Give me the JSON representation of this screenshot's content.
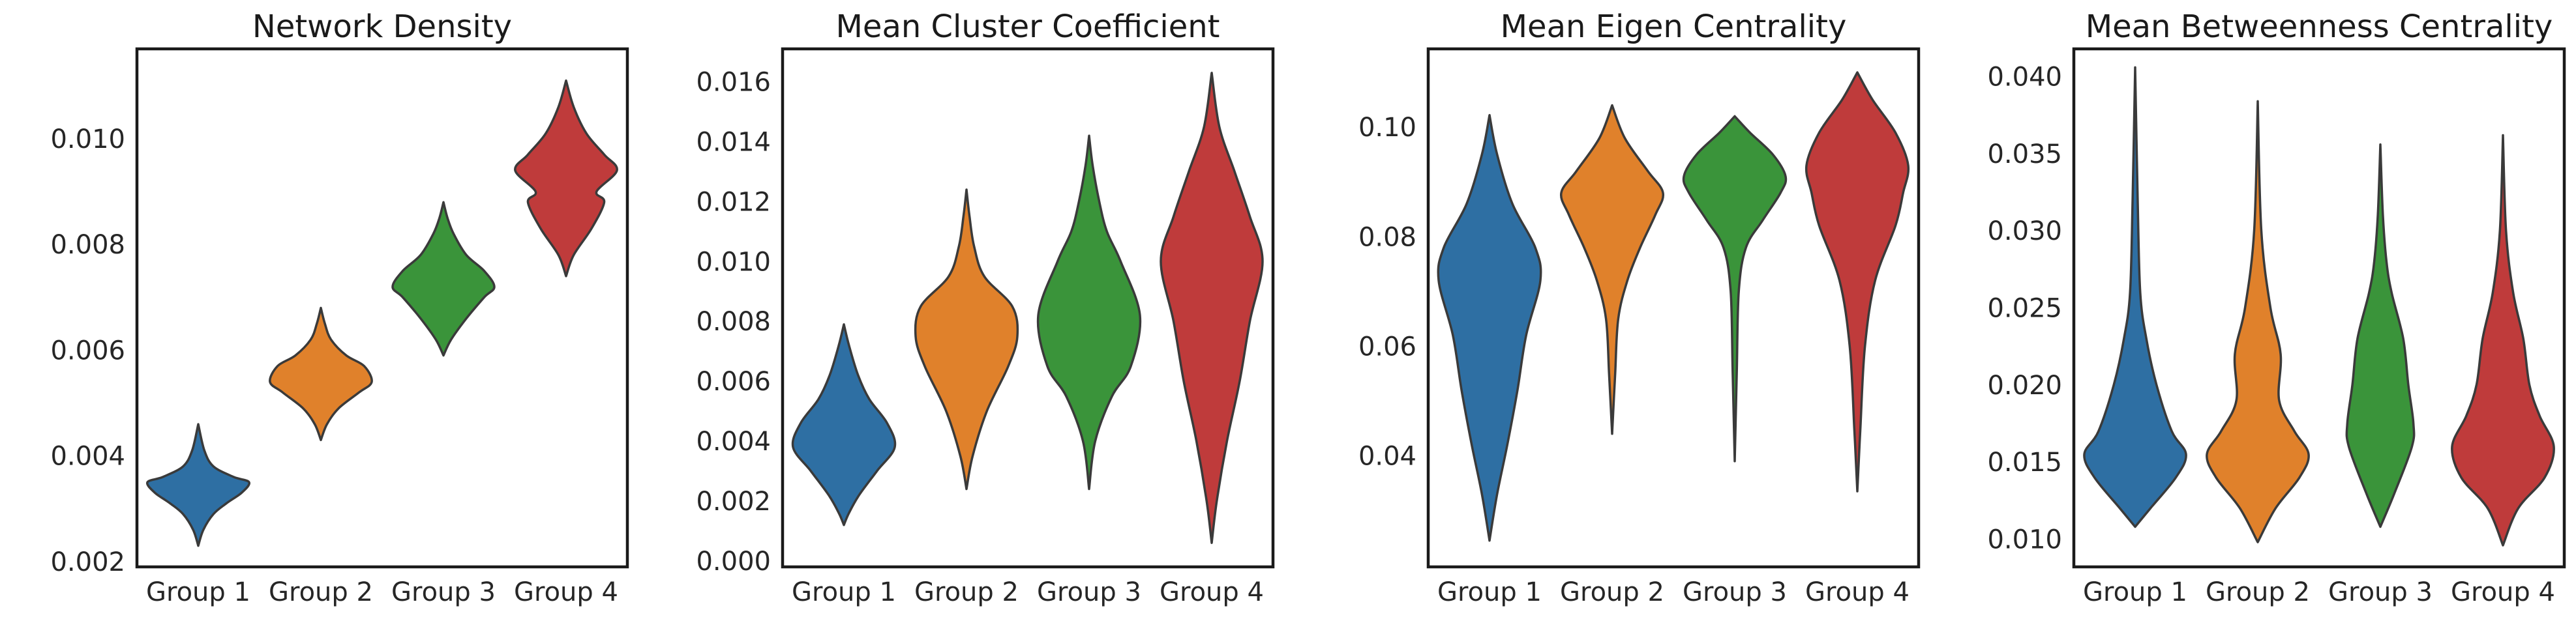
{
  "figure": {
    "category_labels": [
      "Group 1",
      "Group 2",
      "Group 3",
      "Group 4"
    ],
    "colors": [
      "#2e6fa3",
      "#e0812b",
      "#3a943a",
      "#bf3b3b"
    ]
  },
  "chart_data": [
    {
      "type": "violin",
      "title": "Network Density",
      "categories": [
        "Group 1",
        "Group 2",
        "Group 3",
        "Group 4"
      ],
      "ylim": [
        0.0019,
        0.0117
      ],
      "yticks": [
        0.002,
        0.004,
        0.006,
        0.008,
        0.01
      ],
      "ytick_labels": [
        "0.002",
        "0.004",
        "0.006",
        "0.008",
        "0.010"
      ],
      "series": [
        {
          "name": "Group 1",
          "profile": [
            [
              0.0023,
              0
            ],
            [
              0.0026,
              0.1
            ],
            [
              0.0029,
              0.3
            ],
            [
              0.0031,
              0.55
            ],
            [
              0.0033,
              0.85
            ],
            [
              0.0035,
              1.0
            ],
            [
              0.0036,
              0.7
            ],
            [
              0.0038,
              0.3
            ],
            [
              0.0041,
              0.12
            ],
            [
              0.0046,
              0
            ]
          ]
        },
        {
          "name": "Group 2",
          "profile": [
            [
              0.0043,
              0
            ],
            [
              0.0046,
              0.12
            ],
            [
              0.0049,
              0.35
            ],
            [
              0.0052,
              0.75
            ],
            [
              0.0054,
              1.0
            ],
            [
              0.0057,
              0.85
            ],
            [
              0.0059,
              0.5
            ],
            [
              0.0062,
              0.2
            ],
            [
              0.0065,
              0.08
            ],
            [
              0.0068,
              0
            ]
          ]
        },
        {
          "name": "Group 3",
          "profile": [
            [
              0.0059,
              0
            ],
            [
              0.0062,
              0.15
            ],
            [
              0.0066,
              0.45
            ],
            [
              0.007,
              0.8
            ],
            [
              0.0072,
              1.0
            ],
            [
              0.0075,
              0.8
            ],
            [
              0.0078,
              0.45
            ],
            [
              0.0082,
              0.2
            ],
            [
              0.0085,
              0.08
            ],
            [
              0.0088,
              0
            ]
          ]
        },
        {
          "name": "Group 4",
          "profile": [
            [
              0.0074,
              0
            ],
            [
              0.0078,
              0.15
            ],
            [
              0.0083,
              0.5
            ],
            [
              0.0088,
              0.75
            ],
            [
              0.009,
              0.6
            ],
            [
              0.0094,
              1.0
            ],
            [
              0.0097,
              0.75
            ],
            [
              0.0101,
              0.4
            ],
            [
              0.0106,
              0.15
            ],
            [
              0.0111,
              0
            ]
          ]
        }
      ]
    },
    {
      "type": "violin",
      "title": "Mean Cluster Coefficient",
      "categories": [
        "Group 1",
        "Group 2",
        "Group 3",
        "Group 4"
      ],
      "ylim": [
        -0.0002,
        0.0171
      ],
      "yticks": [
        0.0,
        0.002,
        0.004,
        0.006,
        0.008,
        0.01,
        0.012,
        0.014,
        0.016
      ],
      "ytick_labels": [
        "0.000",
        "0.002",
        "0.004",
        "0.006",
        "0.008",
        "0.010",
        "0.012",
        "0.014",
        "0.016"
      ],
      "series": [
        {
          "name": "Group 1",
          "profile": [
            [
              0.0012,
              0
            ],
            [
              0.0016,
              0.1
            ],
            [
              0.0022,
              0.3
            ],
            [
              0.003,
              0.65
            ],
            [
              0.0038,
              1.0
            ],
            [
              0.0046,
              0.85
            ],
            [
              0.0054,
              0.5
            ],
            [
              0.0062,
              0.28
            ],
            [
              0.0072,
              0.1
            ],
            [
              0.0079,
              0
            ]
          ]
        },
        {
          "name": "Group 2",
          "profile": [
            [
              0.0024,
              0
            ],
            [
              0.0035,
              0.12
            ],
            [
              0.005,
              0.4
            ],
            [
              0.0065,
              0.82
            ],
            [
              0.0075,
              1.0
            ],
            [
              0.0085,
              0.9
            ],
            [
              0.0095,
              0.35
            ],
            [
              0.0105,
              0.15
            ],
            [
              0.0115,
              0.06
            ],
            [
              0.0124,
              0
            ]
          ]
        },
        {
          "name": "Group 3",
          "profile": [
            [
              0.0024,
              0
            ],
            [
              0.004,
              0.12
            ],
            [
              0.0055,
              0.45
            ],
            [
              0.0065,
              0.82
            ],
            [
              0.0082,
              1.0
            ],
            [
              0.01,
              0.62
            ],
            [
              0.011,
              0.35
            ],
            [
              0.012,
              0.2
            ],
            [
              0.0132,
              0.07
            ],
            [
              0.0142,
              0
            ]
          ]
        },
        {
          "name": "Group 4",
          "profile": [
            [
              0.0006,
              0
            ],
            [
              0.002,
              0.1
            ],
            [
              0.004,
              0.3
            ],
            [
              0.006,
              0.55
            ],
            [
              0.008,
              0.75
            ],
            [
              0.01,
              1.0
            ],
            [
              0.0115,
              0.75
            ],
            [
              0.013,
              0.45
            ],
            [
              0.0145,
              0.15
            ],
            [
              0.0163,
              0
            ]
          ]
        }
      ]
    },
    {
      "type": "violin",
      "title": "Mean Eigen Centrality",
      "categories": [
        "Group 1",
        "Group 2",
        "Group 3",
        "Group 4"
      ],
      "ylim": [
        0.0197,
        0.1143
      ],
      "yticks": [
        0.04,
        0.06,
        0.08,
        0.1
      ],
      "ytick_labels": [
        "0.04",
        "0.06",
        "0.08",
        "0.10"
      ],
      "series": [
        {
          "name": "Group 1",
          "profile": [
            [
              0.0245,
              0
            ],
            [
              0.033,
              0.15
            ],
            [
              0.042,
              0.35
            ],
            [
              0.052,
              0.55
            ],
            [
              0.062,
              0.72
            ],
            [
              0.072,
              1.0
            ],
            [
              0.078,
              0.9
            ],
            [
              0.086,
              0.45
            ],
            [
              0.095,
              0.15
            ],
            [
              0.1022,
              0
            ]
          ]
        },
        {
          "name": "Group 2",
          "profile": [
            [
              0.044,
              0
            ],
            [
              0.055,
              0.06
            ],
            [
              0.065,
              0.12
            ],
            [
              0.072,
              0.3
            ],
            [
              0.078,
              0.55
            ],
            [
              0.084,
              0.85
            ],
            [
              0.088,
              1.0
            ],
            [
              0.092,
              0.7
            ],
            [
              0.098,
              0.25
            ],
            [
              0.104,
              0
            ]
          ]
        },
        {
          "name": "Group 3",
          "profile": [
            [
              0.039,
              0
            ],
            [
              0.055,
              0.04
            ],
            [
              0.07,
              0.08
            ],
            [
              0.078,
              0.22
            ],
            [
              0.083,
              0.55
            ],
            [
              0.088,
              0.9
            ],
            [
              0.091,
              1.0
            ],
            [
              0.095,
              0.75
            ],
            [
              0.099,
              0.3
            ],
            [
              0.102,
              0
            ]
          ]
        },
        {
          "name": "Group 4",
          "profile": [
            [
              0.0335,
              0
            ],
            [
              0.045,
              0.06
            ],
            [
              0.06,
              0.15
            ],
            [
              0.072,
              0.35
            ],
            [
              0.082,
              0.75
            ],
            [
              0.088,
              0.9
            ],
            [
              0.093,
              1.0
            ],
            [
              0.099,
              0.75
            ],
            [
              0.105,
              0.3
            ],
            [
              0.11,
              0
            ]
          ]
        }
      ]
    },
    {
      "type": "violin",
      "title": "Mean Betweenness Centrality",
      "categories": [
        "Group 1",
        "Group 2",
        "Group 3",
        "Group 4"
      ],
      "ylim": [
        0.0082,
        0.0418
      ],
      "yticks": [
        0.01,
        0.015,
        0.02,
        0.025,
        0.03,
        0.035,
        0.04
      ],
      "ytick_labels": [
        "0.010",
        "0.015",
        "0.020",
        "0.025",
        "0.030",
        "0.035",
        "0.040"
      ],
      "series": [
        {
          "name": "Group 1",
          "profile": [
            [
              0.0108,
              0
            ],
            [
              0.012,
              0.3
            ],
            [
              0.014,
              0.8
            ],
            [
              0.0155,
              1.0
            ],
            [
              0.017,
              0.72
            ],
            [
              0.02,
              0.42
            ],
            [
              0.023,
              0.22
            ],
            [
              0.026,
              0.1
            ],
            [
              0.032,
              0.05
            ],
            [
              0.0406,
              0
            ]
          ]
        },
        {
          "name": "Group 2",
          "profile": [
            [
              0.0098,
              0
            ],
            [
              0.012,
              0.35
            ],
            [
              0.014,
              0.82
            ],
            [
              0.0155,
              1.0
            ],
            [
              0.017,
              0.72
            ],
            [
              0.019,
              0.42
            ],
            [
              0.022,
              0.45
            ],
            [
              0.025,
              0.25
            ],
            [
              0.03,
              0.07
            ],
            [
              0.0384,
              0
            ]
          ]
        },
        {
          "name": "Group 3",
          "profile": [
            [
              0.0108,
              0
            ],
            [
              0.013,
              0.28
            ],
            [
              0.016,
              0.62
            ],
            [
              0.0175,
              0.65
            ],
            [
              0.02,
              0.55
            ],
            [
              0.023,
              0.45
            ],
            [
              0.026,
              0.22
            ],
            [
              0.028,
              0.12
            ],
            [
              0.031,
              0.05
            ],
            [
              0.0356,
              0
            ]
          ]
        },
        {
          "name": "Group 4",
          "profile": [
            [
              0.0096,
              0
            ],
            [
              0.012,
              0.3
            ],
            [
              0.014,
              0.82
            ],
            [
              0.016,
              1.0
            ],
            [
              0.018,
              0.72
            ],
            [
              0.02,
              0.52
            ],
            [
              0.023,
              0.4
            ],
            [
              0.026,
              0.2
            ],
            [
              0.03,
              0.06
            ],
            [
              0.0362,
              0
            ]
          ]
        }
      ]
    }
  ]
}
